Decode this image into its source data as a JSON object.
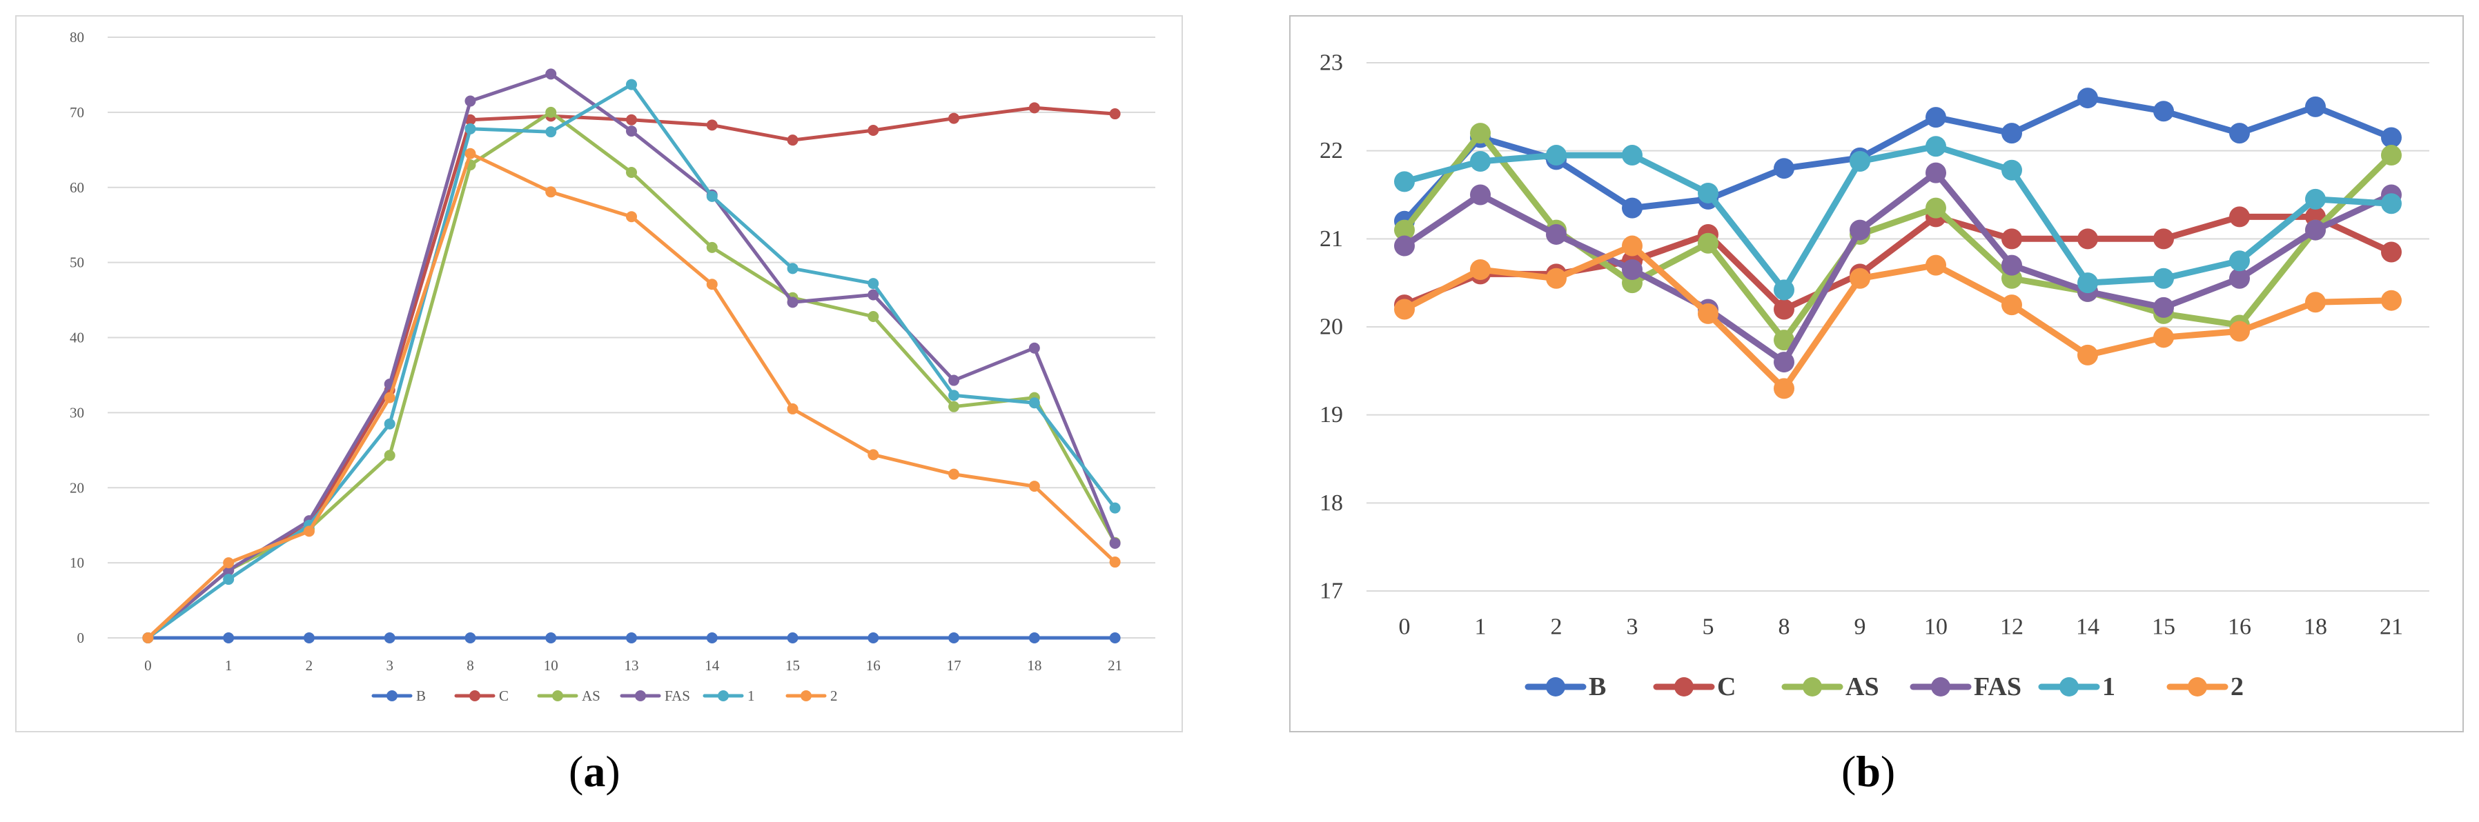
{
  "colors": {
    "B": "#4472C4",
    "C": "#C0504D",
    "AS": "#9BBB59",
    "FAS": "#8064A2",
    "1": "#4BACC6",
    "2": "#F79646"
  },
  "panels": {
    "a": {
      "open": "(",
      "letter": "a",
      "close": ")"
    },
    "b": {
      "open": "(",
      "letter": "b",
      "close": ")"
    }
  },
  "chart_data": [
    {
      "id": "a",
      "type": "line",
      "categories": [
        "0",
        "1",
        "2",
        "3",
        "8",
        "10",
        "13",
        "14",
        "15",
        "16",
        "17",
        "18",
        "21"
      ],
      "ylim": [
        0,
        80
      ],
      "yticks": [
        "0",
        "10",
        "20",
        "30",
        "40",
        "50",
        "60",
        "70",
        "80"
      ],
      "grid": true,
      "legend": "bottom",
      "title": "",
      "xlabel": "",
      "ylabel": "",
      "series": [
        {
          "name": "B",
          "values": [
            0,
            0,
            0,
            0,
            0,
            0,
            0,
            0,
            0,
            0,
            0,
            0,
            0
          ]
        },
        {
          "name": "C",
          "values": [
            0,
            9,
            15,
            33,
            69,
            69.5,
            69,
            68.3,
            66.3,
            67.6,
            69.2,
            70.6,
            69.8
          ]
        },
        {
          "name": "AS",
          "values": [
            0,
            9,
            14.5,
            24.3,
            63,
            70,
            62,
            52,
            45.3,
            42.8,
            30.8,
            32,
            12.7
          ]
        },
        {
          "name": "FAS",
          "values": [
            0,
            9,
            15.6,
            33.8,
            71.5,
            75.1,
            67.5,
            59,
            44.7,
            45.7,
            34.3,
            38.6,
            12.6
          ]
        },
        {
          "name": "1",
          "values": [
            0,
            7.8,
            15,
            28.5,
            67.8,
            67.4,
            73.7,
            58.8,
            49.2,
            47.2,
            32.3,
            31.3,
            17.3
          ]
        },
        {
          "name": "2",
          "values": [
            0,
            10,
            14.2,
            32,
            64.5,
            59.4,
            56.1,
            47.1,
            30.5,
            24.4,
            21.8,
            20.2,
            10.1
          ]
        }
      ]
    },
    {
      "id": "b",
      "type": "line",
      "categories": [
        "0",
        "1",
        "2",
        "3",
        "5",
        "8",
        "9",
        "10",
        "12",
        "14",
        "15",
        "16",
        "18",
        "21"
      ],
      "ylim": [
        17,
        23
      ],
      "yticks": [
        "17",
        "18",
        "19",
        "20",
        "21",
        "22",
        "23"
      ],
      "grid": true,
      "legend": "bottom",
      "title": "",
      "xlabel": "",
      "ylabel": "",
      "series": [
        {
          "name": "B",
          "values": [
            21.2,
            22.15,
            21.9,
            21.35,
            21.45,
            21.8,
            21.92,
            22.38,
            22.2,
            22.6,
            22.45,
            22.2,
            22.5,
            22.15
          ]
        },
        {
          "name": "C",
          "values": [
            20.25,
            20.6,
            20.6,
            20.75,
            21.05,
            20.2,
            20.6,
            21.25,
            21,
            21,
            21,
            21.25,
            21.25,
            20.85
          ]
        },
        {
          "name": "AS",
          "values": [
            21.1,
            22.2,
            21.1,
            20.5,
            20.95,
            19.85,
            21.05,
            21.35,
            20.55,
            20.4,
            20.15,
            20.02,
            21.1,
            21.95
          ]
        },
        {
          "name": "FAS",
          "values": [
            20.92,
            21.5,
            21.05,
            20.65,
            20.2,
            19.6,
            21.1,
            21.75,
            20.7,
            20.4,
            20.22,
            20.55,
            21.1,
            21.5
          ]
        },
        {
          "name": "1",
          "values": [
            21.65,
            21.88,
            21.95,
            21.95,
            21.52,
            20.42,
            21.88,
            22.05,
            21.78,
            20.5,
            20.55,
            20.75,
            21.45,
            21.4
          ]
        },
        {
          "name": "2",
          "values": [
            20.2,
            20.65,
            20.55,
            20.92,
            20.15,
            19.3,
            20.55,
            20.7,
            20.25,
            19.68,
            19.88,
            19.95,
            20.28,
            20.3
          ]
        }
      ]
    }
  ]
}
